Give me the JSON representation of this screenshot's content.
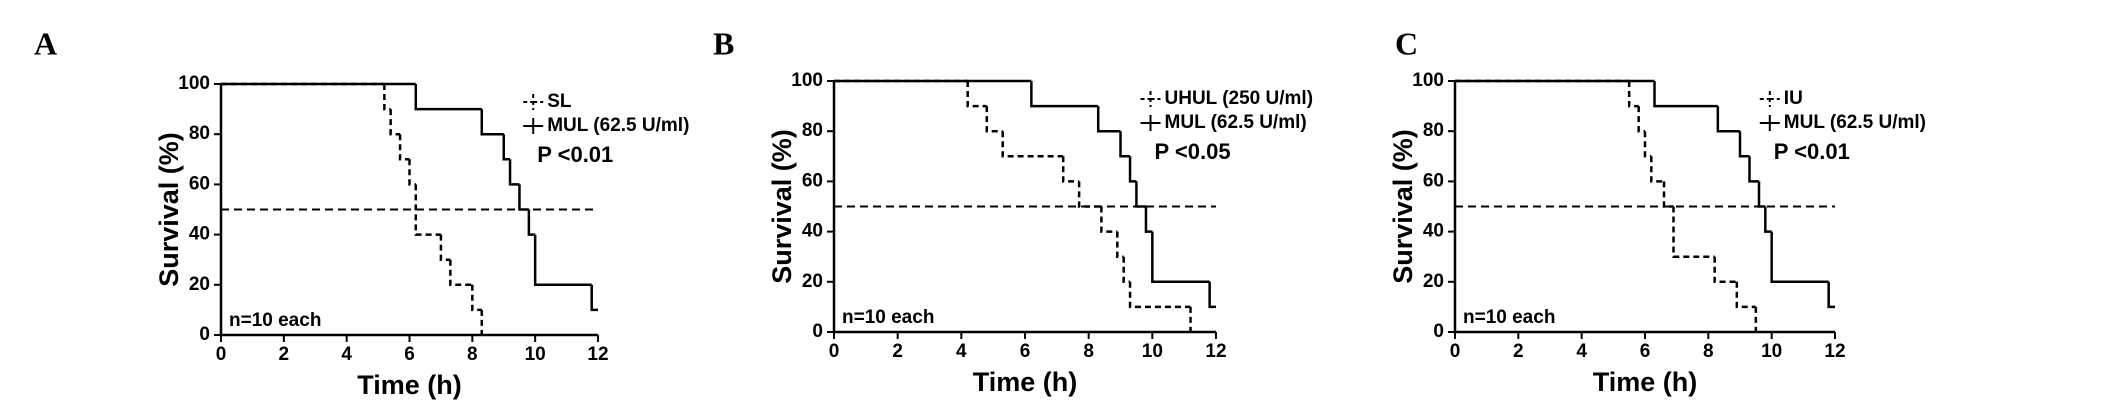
{
  "chart_data": [
    {
      "type": "step",
      "panel_label": "A",
      "xlabel": "Time (h)",
      "ylabel": "Survival (%)",
      "xlim": [
        0,
        12
      ],
      "xticks": [
        0,
        2,
        4,
        6,
        8,
        10,
        12
      ],
      "ylim": [
        0,
        100
      ],
      "yticks": [
        0,
        20,
        40,
        60,
        80,
        100
      ],
      "reference_line": 50,
      "annotation": "n=10 each",
      "p_value": "P <0.01",
      "series": [
        {
          "name": "SL",
          "color": "#000000",
          "dashed": true,
          "x": [
            0,
            5.2,
            5.4,
            5.7,
            6.0,
            6.2,
            7.0,
            7.3,
            8.0,
            8.3
          ],
          "values": [
            100,
            90,
            80,
            70,
            60,
            40,
            30,
            20,
            10,
            0
          ]
        },
        {
          "name": "MUL (62.5 U/ml)",
          "color": "#000000",
          "dashed": false,
          "x": [
            0,
            6.2,
            8.3,
            9.0,
            9.2,
            9.5,
            9.8,
            10.0,
            11.8,
            12
          ],
          "values": [
            100,
            90,
            80,
            70,
            60,
            50,
            40,
            20,
            10,
            10
          ]
        }
      ]
    },
    {
      "type": "step",
      "panel_label": "B",
      "xlabel": "Time (h)",
      "ylabel": "Survival (%)",
      "xlim": [
        0,
        12
      ],
      "xticks": [
        0,
        2,
        4,
        6,
        8,
        10,
        12
      ],
      "ylim": [
        0,
        100
      ],
      "yticks": [
        0,
        20,
        40,
        60,
        80,
        100
      ],
      "reference_line": 50,
      "annotation": "n=10 each",
      "p_value": "P <0.05",
      "series": [
        {
          "name": "UHUL (250 U/ml)",
          "color": "#000000",
          "dashed": true,
          "x": [
            0,
            4.2,
            4.8,
            5.3,
            7.2,
            7.7,
            8.4,
            8.9,
            9.1,
            9.3,
            11.2
          ],
          "values": [
            100,
            90,
            80,
            70,
            60,
            50,
            40,
            30,
            20,
            10,
            0
          ]
        },
        {
          "name": "MUL (62.5 U/ml)",
          "color": "#000000",
          "dashed": false,
          "x": [
            0,
            6.2,
            8.3,
            9.0,
            9.3,
            9.5,
            9.8,
            10.0,
            11.8,
            12
          ],
          "values": [
            100,
            90,
            80,
            70,
            60,
            50,
            40,
            20,
            10,
            10
          ]
        }
      ]
    },
    {
      "type": "step",
      "panel_label": "C",
      "xlabel": "Time (h)",
      "ylabel": "Survival (%)",
      "xlim": [
        0,
        12
      ],
      "xticks": [
        0,
        2,
        4,
        6,
        8,
        10,
        12
      ],
      "ylim": [
        0,
        100
      ],
      "yticks": [
        0,
        20,
        40,
        60,
        80,
        100
      ],
      "reference_line": 50,
      "annotation": "n=10 each",
      "p_value": "P <0.01",
      "series": [
        {
          "name": "IU",
          "color": "#000000",
          "dashed": true,
          "x": [
            0,
            5.5,
            5.8,
            6.0,
            6.2,
            6.6,
            6.9,
            8.2,
            8.9,
            9.5
          ],
          "values": [
            100,
            90,
            80,
            70,
            60,
            50,
            30,
            20,
            10,
            0
          ]
        },
        {
          "name": "MUL (62.5 U/ml)",
          "color": "#000000",
          "dashed": false,
          "x": [
            0,
            6.3,
            8.3,
            9.0,
            9.3,
            9.6,
            9.8,
            10.0,
            11.8,
            12
          ],
          "values": [
            100,
            90,
            80,
            70,
            60,
            50,
            40,
            20,
            10,
            10
          ]
        }
      ]
    }
  ]
}
